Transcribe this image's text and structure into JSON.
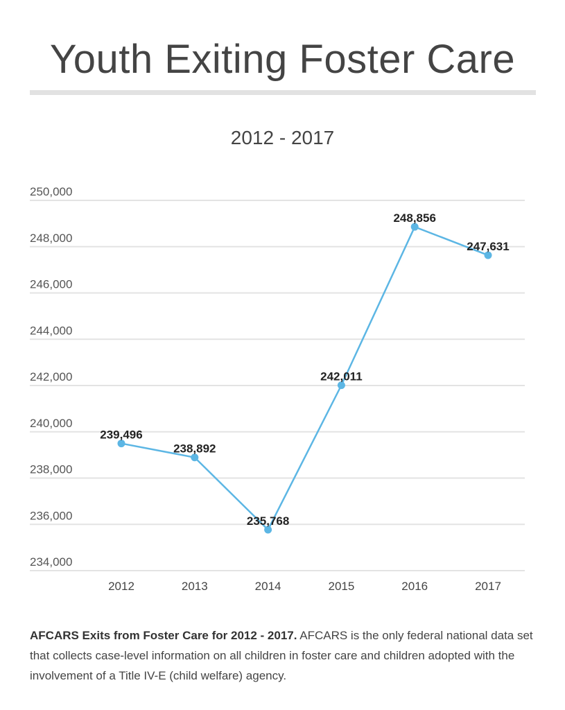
{
  "header": {
    "title": "Youth Exiting Foster Care"
  },
  "chart_data": {
    "type": "line",
    "title": "Youth Exiting Foster Care",
    "subtitle": "2012 - 2017",
    "xlabel": "",
    "ylabel": "",
    "categories": [
      "2012",
      "2013",
      "2014",
      "2015",
      "2016",
      "2017"
    ],
    "values": [
      239496,
      238892,
      235768,
      242011,
      248856,
      247631
    ],
    "data_labels": [
      "239,496",
      "238,892",
      "235,768",
      "242,011",
      "248,856",
      "247,631"
    ],
    "ylim": [
      234000,
      250000
    ],
    "yticks": [
      234000,
      236000,
      238000,
      240000,
      242000,
      244000,
      246000,
      248000,
      250000
    ],
    "ytick_labels": [
      "234,000",
      "236,000",
      "238,000",
      "240,000",
      "242,000",
      "244,000",
      "246,000",
      "248,000",
      "250,000"
    ],
    "grid": true,
    "line_color": "#5cb6e4"
  },
  "caption": {
    "bold": "AFCARS Exits from Foster Care for 2012 - 2017.",
    "text": " AFCARS is the only federal national data set that collects case-level information on all children in foster care and children adopted with the involvement of a Title IV-E (child welfare) agency."
  }
}
